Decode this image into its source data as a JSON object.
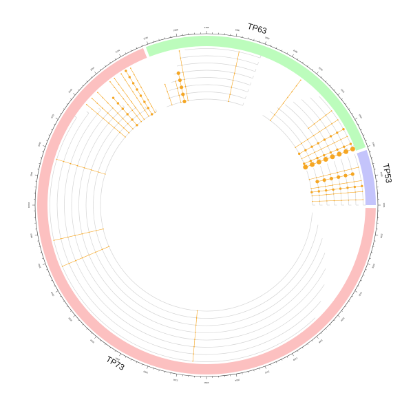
{
  "genes": [
    {
      "name": "TP53",
      "color": "#c4c4fb",
      "start": 0,
      "end": 19
    },
    {
      "name": "TP63",
      "color": "#bcfcbc",
      "start": 20,
      "end": 111
    },
    {
      "name": "TP73",
      "color": "#fcc0c0",
      "start": 112,
      "end": 359
    }
  ],
  "track_color": "#d4d4d4",
  "mutation_color": "#f5a623",
  "track_count": 8,
  "tracks": [
    {
      "start": 0,
      "end": 19
    },
    {
      "start": 0,
      "end": 19
    },
    {
      "start": 0,
      "end": 19
    },
    {
      "start": 0,
      "end": 19
    },
    {
      "start": 0,
      "end": 19
    },
    {
      "start": 0,
      "end": 19
    },
    {
      "start": 0,
      "end": 19
    },
    {
      "start": 0,
      "end": 19
    },
    {
      "start": 22,
      "end": 58
    },
    {
      "start": 22,
      "end": 56
    },
    {
      "start": 22,
      "end": 54
    },
    {
      "start": 22,
      "end": 52
    },
    {
      "start": 22,
      "end": 50
    },
    {
      "start": 22,
      "end": 48
    },
    {
      "start": 22,
      "end": 46
    },
    {
      "start": 22,
      "end": 44
    },
    {
      "start": 70,
      "end": 112
    },
    {
      "start": 70,
      "end": 110
    },
    {
      "start": 70,
      "end": 108
    },
    {
      "start": 70,
      "end": 106
    },
    {
      "start": 70,
      "end": 104
    },
    {
      "start": 70,
      "end": 102
    },
    {
      "start": 70,
      "end": 100
    },
    {
      "start": 70,
      "end": 98
    },
    {
      "start": 118,
      "end": 356
    },
    {
      "start": 122,
      "end": 350
    },
    {
      "start": 126,
      "end": 344
    },
    {
      "start": 130,
      "end": 338
    },
    {
      "start": 134,
      "end": 332
    },
    {
      "start": 138,
      "end": 326
    },
    {
      "start": 142,
      "end": 320
    },
    {
      "start": 146,
      "end": 314
    }
  ],
  "mutations": [
    {
      "angle": 2,
      "tracks": [
        0,
        7
      ],
      "size": 0
    },
    {
      "angle": 5,
      "tracks": [
        0,
        7
      ],
      "size": 0
    },
    {
      "angle": 7,
      "tracks": [
        0,
        7
      ],
      "size": 1
    },
    {
      "angle": 9,
      "tracks": [
        0,
        7
      ],
      "size": 0
    },
    {
      "angle": 12,
      "tracks": [
        1,
        6
      ],
      "size": 2
    },
    {
      "angle": 14,
      "tracks": [
        0,
        7
      ],
      "size": 0
    },
    {
      "angle": 21,
      "tracks": [
        0,
        7
      ],
      "size": 3
    },
    {
      "angle": 23,
      "tracks": [
        0,
        7
      ],
      "size": 1
    },
    {
      "angle": 26,
      "tracks": [
        0,
        7
      ],
      "size": 0
    },
    {
      "angle": 29,
      "tracks": [
        0,
        7
      ],
      "size": 1
    },
    {
      "angle": 33,
      "tracks": [
        0,
        7
      ],
      "size": 0
    },
    {
      "angle": 37,
      "tracks": [
        3,
        7
      ],
      "size": 0
    },
    {
      "angle": 53,
      "tracks": [
        0,
        7
      ],
      "size": 0
    },
    {
      "angle": 78,
      "tracks": [
        0,
        7
      ],
      "size": 0
    },
    {
      "angle": 100,
      "tracks": [
        0,
        7
      ],
      "size": 0
    },
    {
      "angle": 102,
      "tracks": [
        0,
        4
      ],
      "size": 2
    },
    {
      "angle": 104,
      "tracks": [
        0,
        3
      ],
      "size": 0
    },
    {
      "angle": 109,
      "tracks": [
        0,
        3
      ],
      "size": 0
    },
    {
      "angle": 119,
      "tracks": [
        0,
        7
      ],
      "size": 0
    },
    {
      "angle": 121,
      "tracks": [
        0,
        7
      ],
      "size": 1
    },
    {
      "angle": 123,
      "tracks": [
        0,
        7
      ],
      "size": 0
    },
    {
      "angle": 126,
      "tracks": [
        0,
        7
      ],
      "size": 0
    },
    {
      "angle": 128,
      "tracks": [
        0,
        7
      ],
      "size": 0
    },
    {
      "angle": 131,
      "tracks": [
        0,
        5
      ],
      "size": 1
    },
    {
      "angle": 134,
      "tracks": [
        0,
        7
      ],
      "size": 0
    },
    {
      "angle": 137,
      "tracks": [
        0,
        7
      ],
      "size": 0
    },
    {
      "angle": 140,
      "tracks": [
        0,
        7
      ],
      "size": 0
    },
    {
      "angle": 163,
      "tracks": [
        0,
        7
      ],
      "size": 0
    },
    {
      "angle": 193,
      "tracks": [
        0,
        7
      ],
      "size": 0
    },
    {
      "angle": 203,
      "tracks": [
        0,
        7
      ],
      "size": 0
    },
    {
      "angle": 265,
      "tracks": [
        0,
        7
      ],
      "size": 0
    }
  ],
  "ticks": [
    {
      "angle": 0,
      "label": "3006"
    },
    {
      "angle": 10,
      "label": "2108"
    },
    {
      "angle": 20,
      "label": "2480"
    },
    {
      "angle": 30,
      "label": "1904"
    },
    {
      "angle": 40,
      "label": "2126"
    },
    {
      "angle": 50,
      "label": "2204"
    },
    {
      "angle": 60,
      "label": "2166"
    },
    {
      "angle": 70,
      "label": "2094"
    },
    {
      "angle": 80,
      "label": "1980"
    },
    {
      "angle": 90,
      "label": "2168"
    },
    {
      "angle": 100,
      "label": "1988"
    },
    {
      "angle": 110,
      "label": "2126"
    },
    {
      "angle": 120,
      "label": "2134"
    },
    {
      "angle": 130,
      "label": "2054"
    },
    {
      "angle": 140,
      "label": "2040"
    },
    {
      "angle": 150,
      "label": "2222"
    },
    {
      "angle": 160,
      "label": "2040"
    },
    {
      "angle": 170,
      "label": "1946"
    },
    {
      "angle": 180,
      "label": "10004"
    },
    {
      "angle": 190,
      "label": "1960"
    },
    {
      "angle": 200,
      "label": "2002"
    },
    {
      "angle": 210,
      "label": "2010"
    },
    {
      "angle": 220,
      "label": "2080"
    },
    {
      "angle": 230,
      "label": "2034"
    },
    {
      "angle": 240,
      "label": "2084"
    },
    {
      "angle": 250,
      "label": "2060"
    },
    {
      "angle": 260,
      "label": "2148"
    },
    {
      "angle": 270,
      "label": "2060"
    },
    {
      "angle": 280,
      "label": "2004"
    },
    {
      "angle": 290,
      "label": "2152"
    },
    {
      "angle": 300,
      "label": "2128"
    },
    {
      "angle": 310,
      "label": "2146"
    },
    {
      "angle": 320,
      "label": "2004"
    },
    {
      "angle": 330,
      "label": "2120"
    },
    {
      "angle": 340,
      "label": "2028"
    },
    {
      "angle": 350,
      "label": "2030"
    }
  ]
}
